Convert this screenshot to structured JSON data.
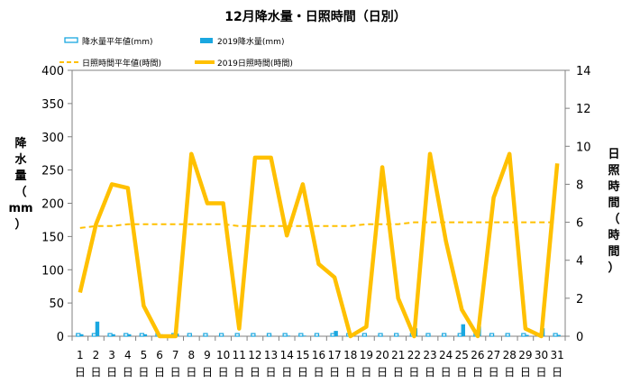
{
  "chart_data": {
    "type": "bar+line",
    "title": "12月降水量・日照時間（日別）",
    "categories": [
      "1",
      "2",
      "3",
      "4",
      "5",
      "6",
      "7",
      "8",
      "9",
      "10",
      "11",
      "12",
      "13",
      "14",
      "15",
      "16",
      "17",
      "18",
      "19",
      "20",
      "21",
      "22",
      "23",
      "24",
      "25",
      "26",
      "27",
      "28",
      "29",
      "30",
      "31"
    ],
    "category_suffix": "日",
    "y_left": {
      "label_chars": [
        "降",
        "水",
        "量",
        "（",
        "mm",
        "）"
      ],
      "min": 0,
      "max": 400,
      "ticks": [
        0,
        50,
        100,
        150,
        200,
        250,
        300,
        350,
        400
      ]
    },
    "y_right": {
      "label_chars": [
        "日",
        "照",
        "時",
        "間",
        "（",
        "時",
        "間",
        "）"
      ],
      "min": 0,
      "max": 14,
      "ticks": [
        0,
        2,
        4,
        6,
        8,
        10,
        12,
        14
      ]
    },
    "legend": [
      {
        "name": "降水量平年値(mm)",
        "kind": "bar-outline",
        "color": "#1aa7e0"
      },
      {
        "name": "2019降水量(mm)",
        "kind": "bar",
        "color": "#1aa7e0"
      },
      {
        "name": "日照時間平年値(時間)",
        "kind": "dashed-line",
        "color": "#ffc000"
      },
      {
        "name": "2019日照時間(時間)",
        "kind": "line",
        "color": "#ffc000"
      }
    ],
    "series": [
      {
        "name": "降水量平年値(mm)",
        "axis": "left",
        "values": [
          4,
          4,
          4,
          4,
          4,
          4,
          4,
          4,
          4,
          4,
          4,
          4,
          4,
          4,
          4,
          4,
          4,
          4,
          4,
          4,
          4,
          4,
          4,
          4,
          4,
          4,
          4,
          4,
          4,
          4,
          4
        ]
      },
      {
        "name": "2019降水量(mm)",
        "axis": "left",
        "values": [
          3,
          22,
          3,
          3,
          3,
          3,
          4,
          0,
          0,
          0,
          0,
          0,
          0,
          1,
          1,
          0,
          8,
          2,
          0,
          0,
          0,
          12,
          0,
          0,
          18,
          15,
          0,
          0,
          2,
          12,
          2
        ]
      },
      {
        "name": "日照時間平年値(時間)",
        "axis": "right",
        "values": [
          5.7,
          5.8,
          5.8,
          5.9,
          5.9,
          5.9,
          5.9,
          5.9,
          5.9,
          5.9,
          5.8,
          5.8,
          5.8,
          5.8,
          5.8,
          5.8,
          5.8,
          5.8,
          5.9,
          5.9,
          5.9,
          6.0,
          6.0,
          6.0,
          6.0,
          6.0,
          6.0,
          6.0,
          6.0,
          6.0,
          6.0
        ]
      },
      {
        "name": "2019日照時間(時間)",
        "axis": "right",
        "values": [
          2.3,
          5.9,
          8.0,
          7.8,
          1.6,
          0.0,
          0.0,
          9.6,
          7.0,
          7.0,
          0.4,
          9.4,
          9.4,
          5.3,
          8.0,
          3.8,
          3.1,
          0.0,
          0.5,
          8.9,
          2.0,
          0.0,
          9.6,
          5.0,
          1.4,
          0.0,
          7.3,
          9.6,
          0.4,
          0.0,
          9.1
        ]
      }
    ],
    "colors": {
      "bar": "#1aa7e0",
      "line": "#ffc000",
      "axis": "#808080",
      "background": "#ffffff"
    }
  }
}
